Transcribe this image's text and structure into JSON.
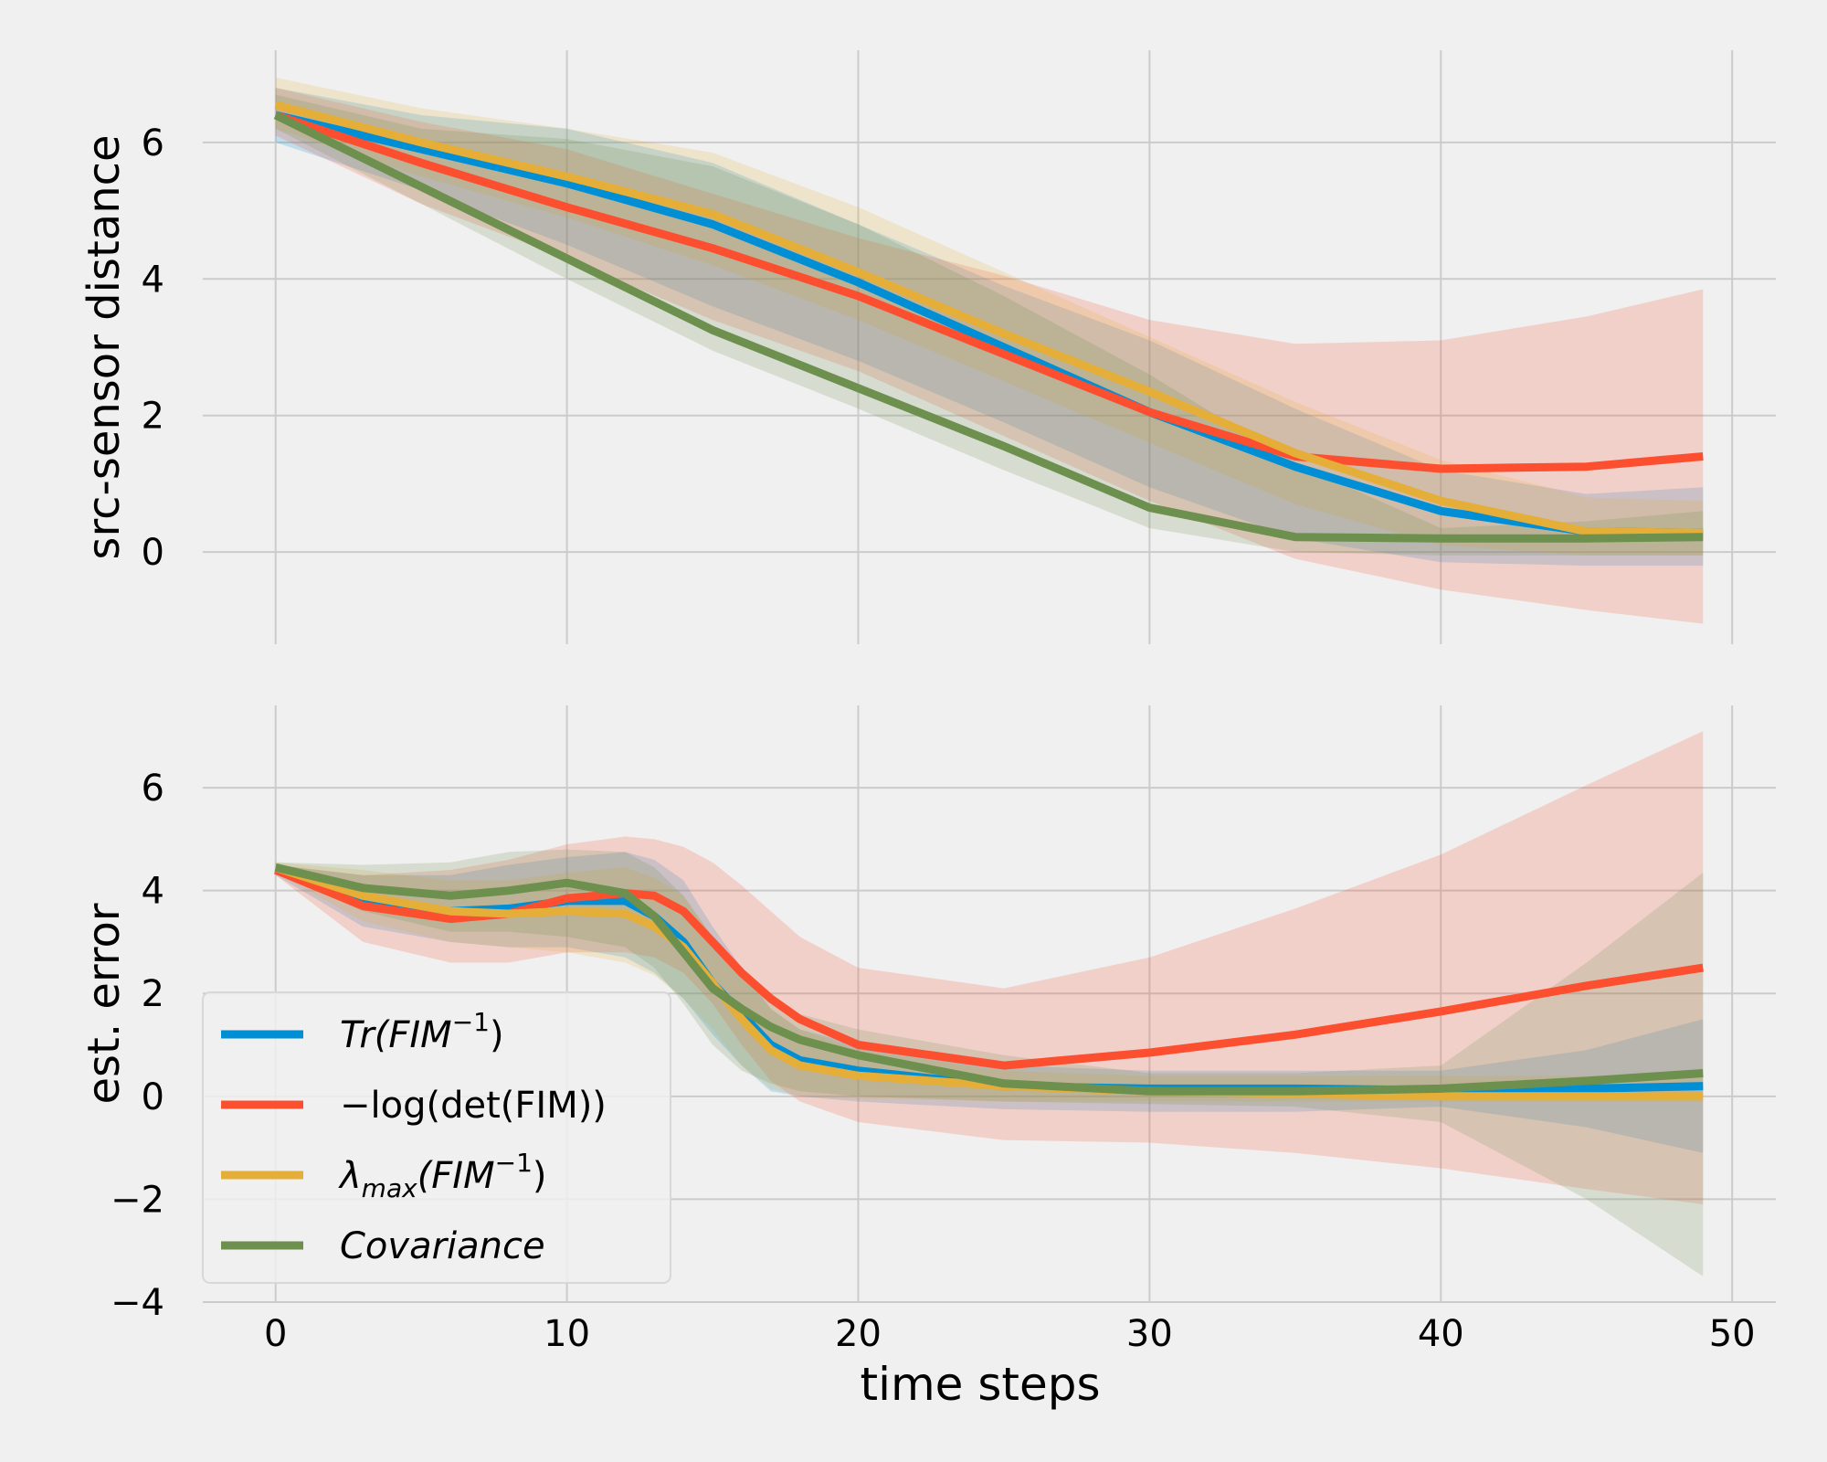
{
  "figure": {
    "xlabel": "time steps",
    "legend_location": "lower-left of bottom panel"
  },
  "legend": [
    {
      "key": "tr",
      "label_main": "Tr(FIM",
      "label_sup": "−1",
      "label_tail": ")"
    },
    {
      "key": "logdet",
      "label_main": "−log(det(FIM))",
      "label_sup": "",
      "label_tail": ""
    },
    {
      "key": "lmax",
      "label_main": "λ",
      "label_sub": "max",
      "label_tail": "(FIM",
      "label_sup": "−1",
      "label_end": ")"
    },
    {
      "key": "cov",
      "label_main": "Covariance",
      "label_sup": "",
      "label_tail": ""
    }
  ],
  "colors": {
    "tr": "#008fd5",
    "logdet": "#fc4f30",
    "lmax": "#e5ae38",
    "cov": "#6d904f",
    "grid": "#cbcbcb",
    "background": "#f0f0f0"
  },
  "chart_data": [
    {
      "type": "line",
      "panel": "top",
      "ylabel": "src-sensor distance",
      "xlim": [
        -2.5,
        51.5
      ],
      "ylim": [
        -1.35,
        7.35
      ],
      "xticks": [
        0,
        10,
        20,
        30,
        40,
        50
      ],
      "xtick_labels_shown": false,
      "yticks": [
        0,
        2,
        4,
        6
      ],
      "ytick_labels": [
        "0",
        "2",
        "4",
        "6"
      ],
      "grid": true,
      "x": [
        0,
        5,
        10,
        15,
        20,
        25,
        30,
        35,
        40,
        45,
        49
      ],
      "series": [
        {
          "key": "tr",
          "mean": [
            6.4,
            5.9,
            5.4,
            4.8,
            3.95,
            3.0,
            2.05,
            1.25,
            0.6,
            0.3,
            0.28
          ],
          "lower": [
            6.0,
            5.3,
            4.5,
            3.6,
            2.8,
            1.9,
            0.95,
            0.2,
            -0.15,
            -0.2,
            -0.2
          ],
          "upper": [
            6.8,
            6.4,
            6.2,
            5.7,
            4.8,
            3.9,
            3.1,
            2.1,
            1.2,
            0.85,
            0.95
          ]
        },
        {
          "key": "logdet",
          "mean": [
            6.4,
            5.7,
            5.05,
            4.45,
            3.75,
            2.9,
            2.05,
            1.4,
            1.22,
            1.25,
            1.4
          ],
          "lower": [
            6.1,
            5.1,
            4.3,
            3.4,
            2.65,
            1.7,
            0.75,
            -0.1,
            -0.55,
            -0.85,
            -1.05
          ],
          "upper": [
            6.8,
            6.3,
            5.9,
            5.25,
            4.6,
            4.05,
            3.4,
            3.05,
            3.1,
            3.45,
            3.85
          ]
        },
        {
          "key": "lmax",
          "mean": [
            6.55,
            6.0,
            5.5,
            4.95,
            4.1,
            3.2,
            2.35,
            1.45,
            0.75,
            0.3,
            0.28
          ],
          "lower": [
            6.2,
            5.5,
            4.9,
            4.2,
            3.4,
            2.5,
            1.6,
            0.7,
            0.1,
            -0.05,
            -0.05
          ],
          "upper": [
            6.95,
            6.5,
            6.2,
            5.85,
            5.05,
            4.1,
            3.15,
            2.2,
            1.35,
            0.8,
            0.75
          ]
        },
        {
          "key": "cov",
          "mean": [
            6.4,
            5.35,
            4.3,
            3.25,
            2.4,
            1.55,
            0.65,
            0.22,
            0.2,
            0.2,
            0.22
          ],
          "lower": [
            6.2,
            5.1,
            4.0,
            2.95,
            2.1,
            1.2,
            0.35,
            0.0,
            -0.05,
            -0.05,
            -0.05
          ],
          "upper": [
            6.7,
            6.2,
            6.05,
            5.65,
            4.8,
            3.75,
            2.6,
            1.3,
            0.35,
            0.45,
            0.6
          ]
        }
      ]
    },
    {
      "type": "line",
      "panel": "bottom",
      "ylabel": "est. error",
      "xlabel": "time steps",
      "xlim": [
        -2.5,
        51.5
      ],
      "ylim": [
        -4.0,
        7.6
      ],
      "xticks": [
        0,
        10,
        20,
        30,
        40,
        50
      ],
      "xtick_labels": [
        "0",
        "10",
        "20",
        "30",
        "40",
        "50"
      ],
      "yticks": [
        -4,
        -2,
        0,
        2,
        4,
        6
      ],
      "ytick_labels": [
        "−4",
        "−2",
        "0",
        "2",
        "4",
        "6"
      ],
      "grid": true,
      "x": [
        0,
        3,
        6,
        8,
        10,
        12,
        13,
        14,
        15,
        16,
        17,
        18,
        20,
        25,
        30,
        35,
        40,
        45,
        49
      ],
      "series": [
        {
          "key": "tr",
          "mean": [
            4.4,
            3.8,
            3.6,
            3.65,
            3.8,
            3.8,
            3.5,
            3.0,
            2.2,
            1.6,
            1.0,
            0.7,
            0.5,
            0.2,
            0.15,
            0.15,
            0.12,
            0.15,
            0.2
          ],
          "lower": [
            4.3,
            3.3,
            3.0,
            2.9,
            2.9,
            2.7,
            2.4,
            1.9,
            1.2,
            0.6,
            0.1,
            0.0,
            -0.1,
            -0.25,
            -0.3,
            -0.3,
            -0.2,
            -0.6,
            -1.1
          ],
          "upper": [
            4.5,
            4.3,
            4.3,
            4.5,
            4.65,
            4.75,
            4.6,
            4.2,
            3.3,
            2.5,
            1.7,
            1.3,
            1.0,
            0.6,
            0.5,
            0.5,
            0.5,
            0.9,
            1.5
          ]
        },
        {
          "key": "logdet",
          "mean": [
            4.4,
            3.7,
            3.45,
            3.55,
            3.85,
            3.95,
            3.9,
            3.6,
            3.0,
            2.4,
            1.9,
            1.5,
            1.0,
            0.6,
            0.85,
            1.2,
            1.65,
            2.15,
            2.5
          ],
          "lower": [
            4.3,
            3.0,
            2.6,
            2.6,
            2.8,
            2.8,
            2.7,
            2.4,
            1.8,
            1.0,
            0.3,
            -0.1,
            -0.5,
            -0.85,
            -0.9,
            -1.1,
            -1.4,
            -1.8,
            -2.1
          ],
          "upper": [
            4.5,
            4.3,
            4.4,
            4.6,
            4.9,
            5.05,
            5.0,
            4.85,
            4.55,
            4.1,
            3.6,
            3.1,
            2.5,
            2.1,
            2.7,
            3.65,
            4.7,
            6.05,
            7.1
          ]
        },
        {
          "key": "lmax",
          "mean": [
            4.45,
            3.9,
            3.6,
            3.55,
            3.6,
            3.55,
            3.3,
            2.9,
            2.2,
            1.5,
            0.9,
            0.6,
            0.4,
            0.2,
            0.1,
            0.05,
            0.0,
            0.0,
            0.0
          ],
          "lower": [
            4.35,
            3.4,
            3.0,
            2.9,
            2.8,
            2.6,
            2.35,
            1.9,
            1.3,
            0.6,
            0.15,
            0.0,
            -0.05,
            -0.1,
            -0.1,
            -0.1,
            -0.1,
            -0.1,
            -0.1
          ],
          "upper": [
            4.55,
            4.4,
            4.2,
            4.2,
            4.35,
            4.45,
            4.25,
            3.9,
            3.1,
            2.4,
            1.7,
            1.3,
            0.9,
            0.5,
            0.4,
            0.4,
            0.4,
            0.4,
            0.4
          ]
        },
        {
          "key": "cov",
          "mean": [
            4.45,
            4.05,
            3.9,
            4.0,
            4.15,
            3.95,
            3.5,
            2.8,
            2.1,
            1.7,
            1.35,
            1.1,
            0.8,
            0.25,
            0.1,
            0.1,
            0.15,
            0.3,
            0.45
          ],
          "lower": [
            4.35,
            3.6,
            3.2,
            3.2,
            3.1,
            2.9,
            2.5,
            1.8,
            1.0,
            0.5,
            0.25,
            0.1,
            0.0,
            -0.1,
            -0.15,
            -0.2,
            -0.5,
            -2.0,
            -3.5
          ],
          "upper": [
            4.55,
            4.5,
            4.55,
            4.75,
            4.8,
            4.75,
            4.45,
            3.9,
            3.1,
            2.5,
            2.0,
            1.6,
            1.3,
            0.8,
            0.45,
            0.45,
            0.6,
            2.6,
            4.35
          ]
        }
      ]
    }
  ]
}
